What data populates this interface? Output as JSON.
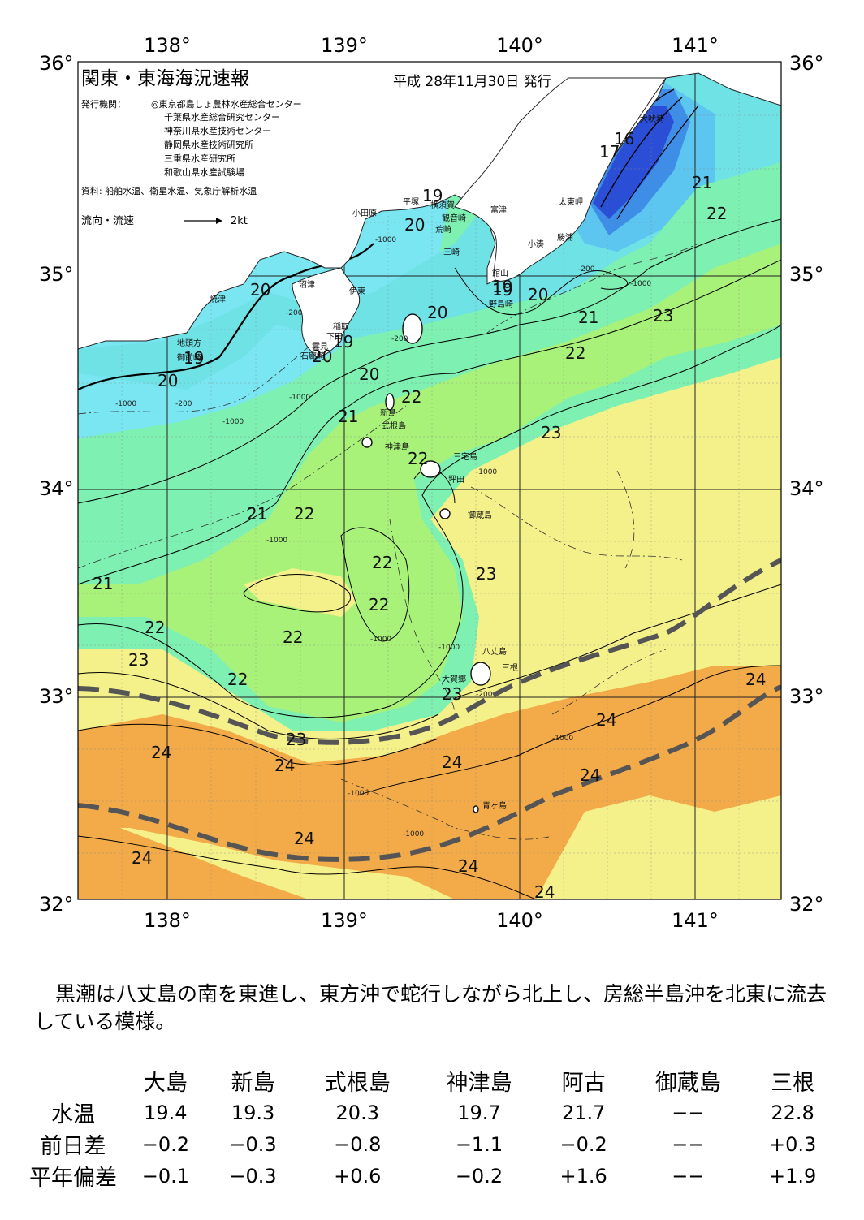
{
  "map": {
    "title": "関東・東海海況速報",
    "issue_date": "平成 28年11月30日 発行",
    "publisher_label": "発行機関：",
    "publishers": [
      "◎東京都島しょ農林水産総合センター",
      "千葉県水産総合研究センター",
      "神奈川県水産技術センター",
      "静岡県水産技術研究所",
      "三重県水産研究所",
      "和歌山県水産試験場"
    ],
    "source": "資料: 船舶水温、衛星水温、気象庁解析水温",
    "flow_label": "流向・流速",
    "flow_scale": "2kt",
    "lon_labels": [
      "138°",
      "139°",
      "140°",
      "141°"
    ],
    "lat_labels": [
      "36°",
      "35°",
      "34°",
      "33°",
      "32°"
    ],
    "colors": {
      "t16": "#2a4fd6",
      "t17": "#3e8ee8",
      "t18": "#5cc6f0",
      "t19": "#79e6f2",
      "t20": "#6fe2e6",
      "t21": "#7df0b2",
      "t22": "#a8f27a",
      "t23": "#f4f08a",
      "t23b": "#f5d27a",
      "t24": "#f3ab4a",
      "land": "#ffffff",
      "kuroshio": "#555555"
    },
    "places": [
      {
        "name": "犬吠埼"
      },
      {
        "name": "太東岬"
      },
      {
        "name": "勝浦"
      },
      {
        "name": "小湊"
      },
      {
        "name": "富津"
      },
      {
        "name": "館山"
      },
      {
        "name": "野島崎"
      },
      {
        "name": "横須賀"
      },
      {
        "name": "観音崎"
      },
      {
        "name": "荒崎"
      },
      {
        "name": "三崎"
      },
      {
        "name": "平塚"
      },
      {
        "name": "小田原"
      },
      {
        "name": "沼津"
      },
      {
        "name": "伊東"
      },
      {
        "name": "焼津"
      },
      {
        "name": "稲取"
      },
      {
        "name": "下田"
      },
      {
        "name": "雲見"
      },
      {
        "name": "石廊崎"
      },
      {
        "name": "地頭方"
      },
      {
        "name": "御前崎"
      },
      {
        "name": "新島"
      },
      {
        "name": "式根島"
      },
      {
        "name": "神津島"
      },
      {
        "name": "三宅島"
      },
      {
        "name": "坪田"
      },
      {
        "name": "御蔵島"
      },
      {
        "name": "八丈島"
      },
      {
        "name": "三根"
      },
      {
        "name": "大賀郷"
      },
      {
        "name": "青ヶ島"
      }
    ],
    "isotherms": [
      {
        "value": "16"
      },
      {
        "value": "17"
      },
      {
        "value": "21"
      },
      {
        "value": "22"
      },
      {
        "value": "19"
      },
      {
        "value": "20"
      },
      {
        "value": "20"
      },
      {
        "value": "20"
      },
      {
        "value": "19"
      },
      {
        "value": "20"
      },
      {
        "value": "20"
      },
      {
        "value": "21"
      },
      {
        "value": "23"
      },
      {
        "value": "22"
      },
      {
        "value": "19"
      },
      {
        "value": "20"
      },
      {
        "value": "20"
      },
      {
        "value": "22"
      },
      {
        "value": "21"
      },
      {
        "value": "23"
      },
      {
        "value": "22"
      },
      {
        "value": "21"
      },
      {
        "value": "22"
      },
      {
        "value": "22"
      },
      {
        "value": "23"
      },
      {
        "value": "21"
      },
      {
        "value": "22"
      },
      {
        "value": "22"
      },
      {
        "value": "22"
      },
      {
        "value": "23"
      },
      {
        "value": "22"
      },
      {
        "value": "23"
      },
      {
        "value": "24"
      },
      {
        "value": "24"
      },
      {
        "value": "23"
      },
      {
        "value": "24"
      },
      {
        "value": "24"
      },
      {
        "value": "24"
      },
      {
        "value": "24"
      },
      {
        "value": "24"
      },
      {
        "value": "24"
      },
      {
        "value": "24"
      },
      {
        "value": "24"
      },
      {
        "value": "19"
      },
      {
        "value": "19"
      }
    ],
    "depth_labels": [
      "-1000",
      "-200",
      "-1000",
      "-200",
      "-1000",
      "-1000",
      "-1000",
      "-1000",
      "-200",
      "-1000",
      "-1000",
      "-1000",
      "-1000",
      "-200",
      "-1000",
      "-200",
      "-1000"
    ]
  },
  "summary": "黒潮は八丈島の南を東進し、東方沖で蛇行しながら北上し、房総半島沖を北東に流去している模様。",
  "table": {
    "columns": [
      "大島",
      "新島",
      "式根島",
      "神津島",
      "阿古",
      "御蔵島",
      "三根"
    ],
    "rows": [
      {
        "label": "水温",
        "values": [
          "19.4",
          "19.3",
          "20.3",
          "19.7",
          "21.7",
          "−−",
          "22.8"
        ]
      },
      {
        "label": "前日差",
        "values": [
          "−0.2",
          "−0.3",
          "−0.8",
          "−1.1",
          "−0.2",
          "−−",
          "+0.3"
        ]
      },
      {
        "label": "平年偏差",
        "values": [
          "−0.1",
          "−0.3",
          "+0.6",
          "−0.2",
          "+1.6",
          "−−",
          "+1.9"
        ]
      }
    ]
  }
}
